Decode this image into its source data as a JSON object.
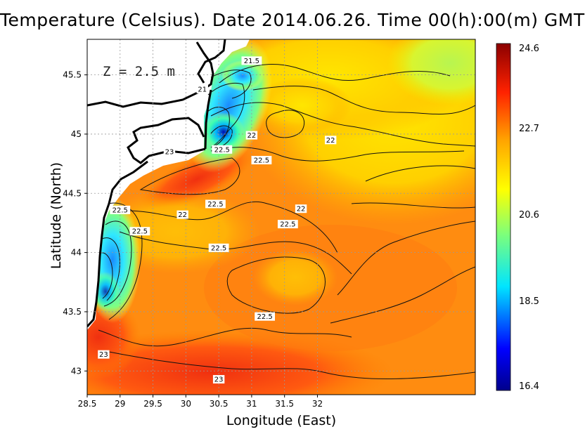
{
  "title": "Temperature (Celsius). Date 2014.06.26. Time 00(h):00(m)  GMT",
  "xlabel": "Longitude (East)",
  "ylabel": "Latitude (North)",
  "depth_label": "Z = 2.5 m",
  "map": {
    "lon_range": [
      28.5,
      34.4
    ],
    "lat_range": [
      42.8,
      45.8
    ],
    "lon_ticks": [
      "28.5",
      "29",
      "29.5",
      "30",
      "30.5",
      "31",
      "31.5",
      "32"
    ],
    "lat_ticks": [
      "43",
      "43.5",
      "44",
      "44.5",
      "45",
      "45.5"
    ],
    "grid": true
  },
  "colorbar": {
    "min": 16.4,
    "max": 24.6,
    "labels": [
      "24.6",
      "22.7",
      "20.6",
      "18.5",
      "16.4"
    ]
  },
  "contour_labels": [
    {
      "text": "21.5",
      "lon": 31.0,
      "lat": 45.62
    },
    {
      "text": "21",
      "lon": 30.25,
      "lat": 45.38
    },
    {
      "text": "22",
      "lon": 31.0,
      "lat": 44.99
    },
    {
      "text": "22",
      "lon": 32.2,
      "lat": 44.95
    },
    {
      "text": "22.5",
      "lon": 30.55,
      "lat": 44.87
    },
    {
      "text": "22.5",
      "lon": 31.15,
      "lat": 44.78
    },
    {
      "text": "23",
      "lon": 29.75,
      "lat": 44.85
    },
    {
      "text": "22",
      "lon": 29.95,
      "lat": 44.32
    },
    {
      "text": "22.5",
      "lon": 30.45,
      "lat": 44.41
    },
    {
      "text": "22",
      "lon": 31.75,
      "lat": 44.37
    },
    {
      "text": "22.5",
      "lon": 29.0,
      "lat": 44.36
    },
    {
      "text": "22.5",
      "lon": 29.3,
      "lat": 44.18
    },
    {
      "text": "22.5",
      "lon": 31.55,
      "lat": 44.24
    },
    {
      "text": "22.5",
      "lon": 30.5,
      "lat": 44.04
    },
    {
      "text": "22.5",
      "lon": 31.2,
      "lat": 43.46
    },
    {
      "text": "23",
      "lon": 28.75,
      "lat": 43.14
    },
    {
      "text": "23",
      "lon": 30.5,
      "lat": 42.93
    }
  ]
}
